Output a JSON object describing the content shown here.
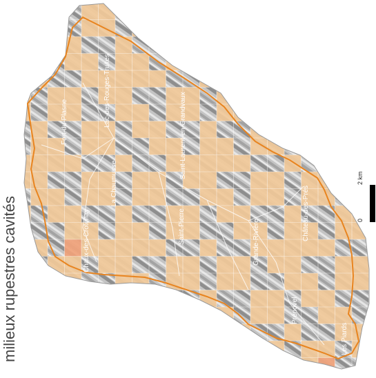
{
  "map": {
    "title": "milieux rupestres cavités",
    "communes": [
      "Fort-du-Plasne",
      "Lac-des-Rouges-Truites",
      "La Chaumusse",
      "Saint-Laurent-en-Grandvaux",
      "Château-des-Prés",
      "Saint-Pierre",
      "Grande-Rivière",
      "Prénovel",
      "Les Piards",
      "Chaux-des-Crotenay"
    ],
    "scale": {
      "labels": [
        "0",
        "2 km"
      ]
    },
    "colors": {
      "relief_fill": "#bfbfbf",
      "cell_present": "#f1c999",
      "cell_highlight": "#f0a27a",
      "boundary": "#e8841f",
      "grid": "#ffffff"
    }
  }
}
